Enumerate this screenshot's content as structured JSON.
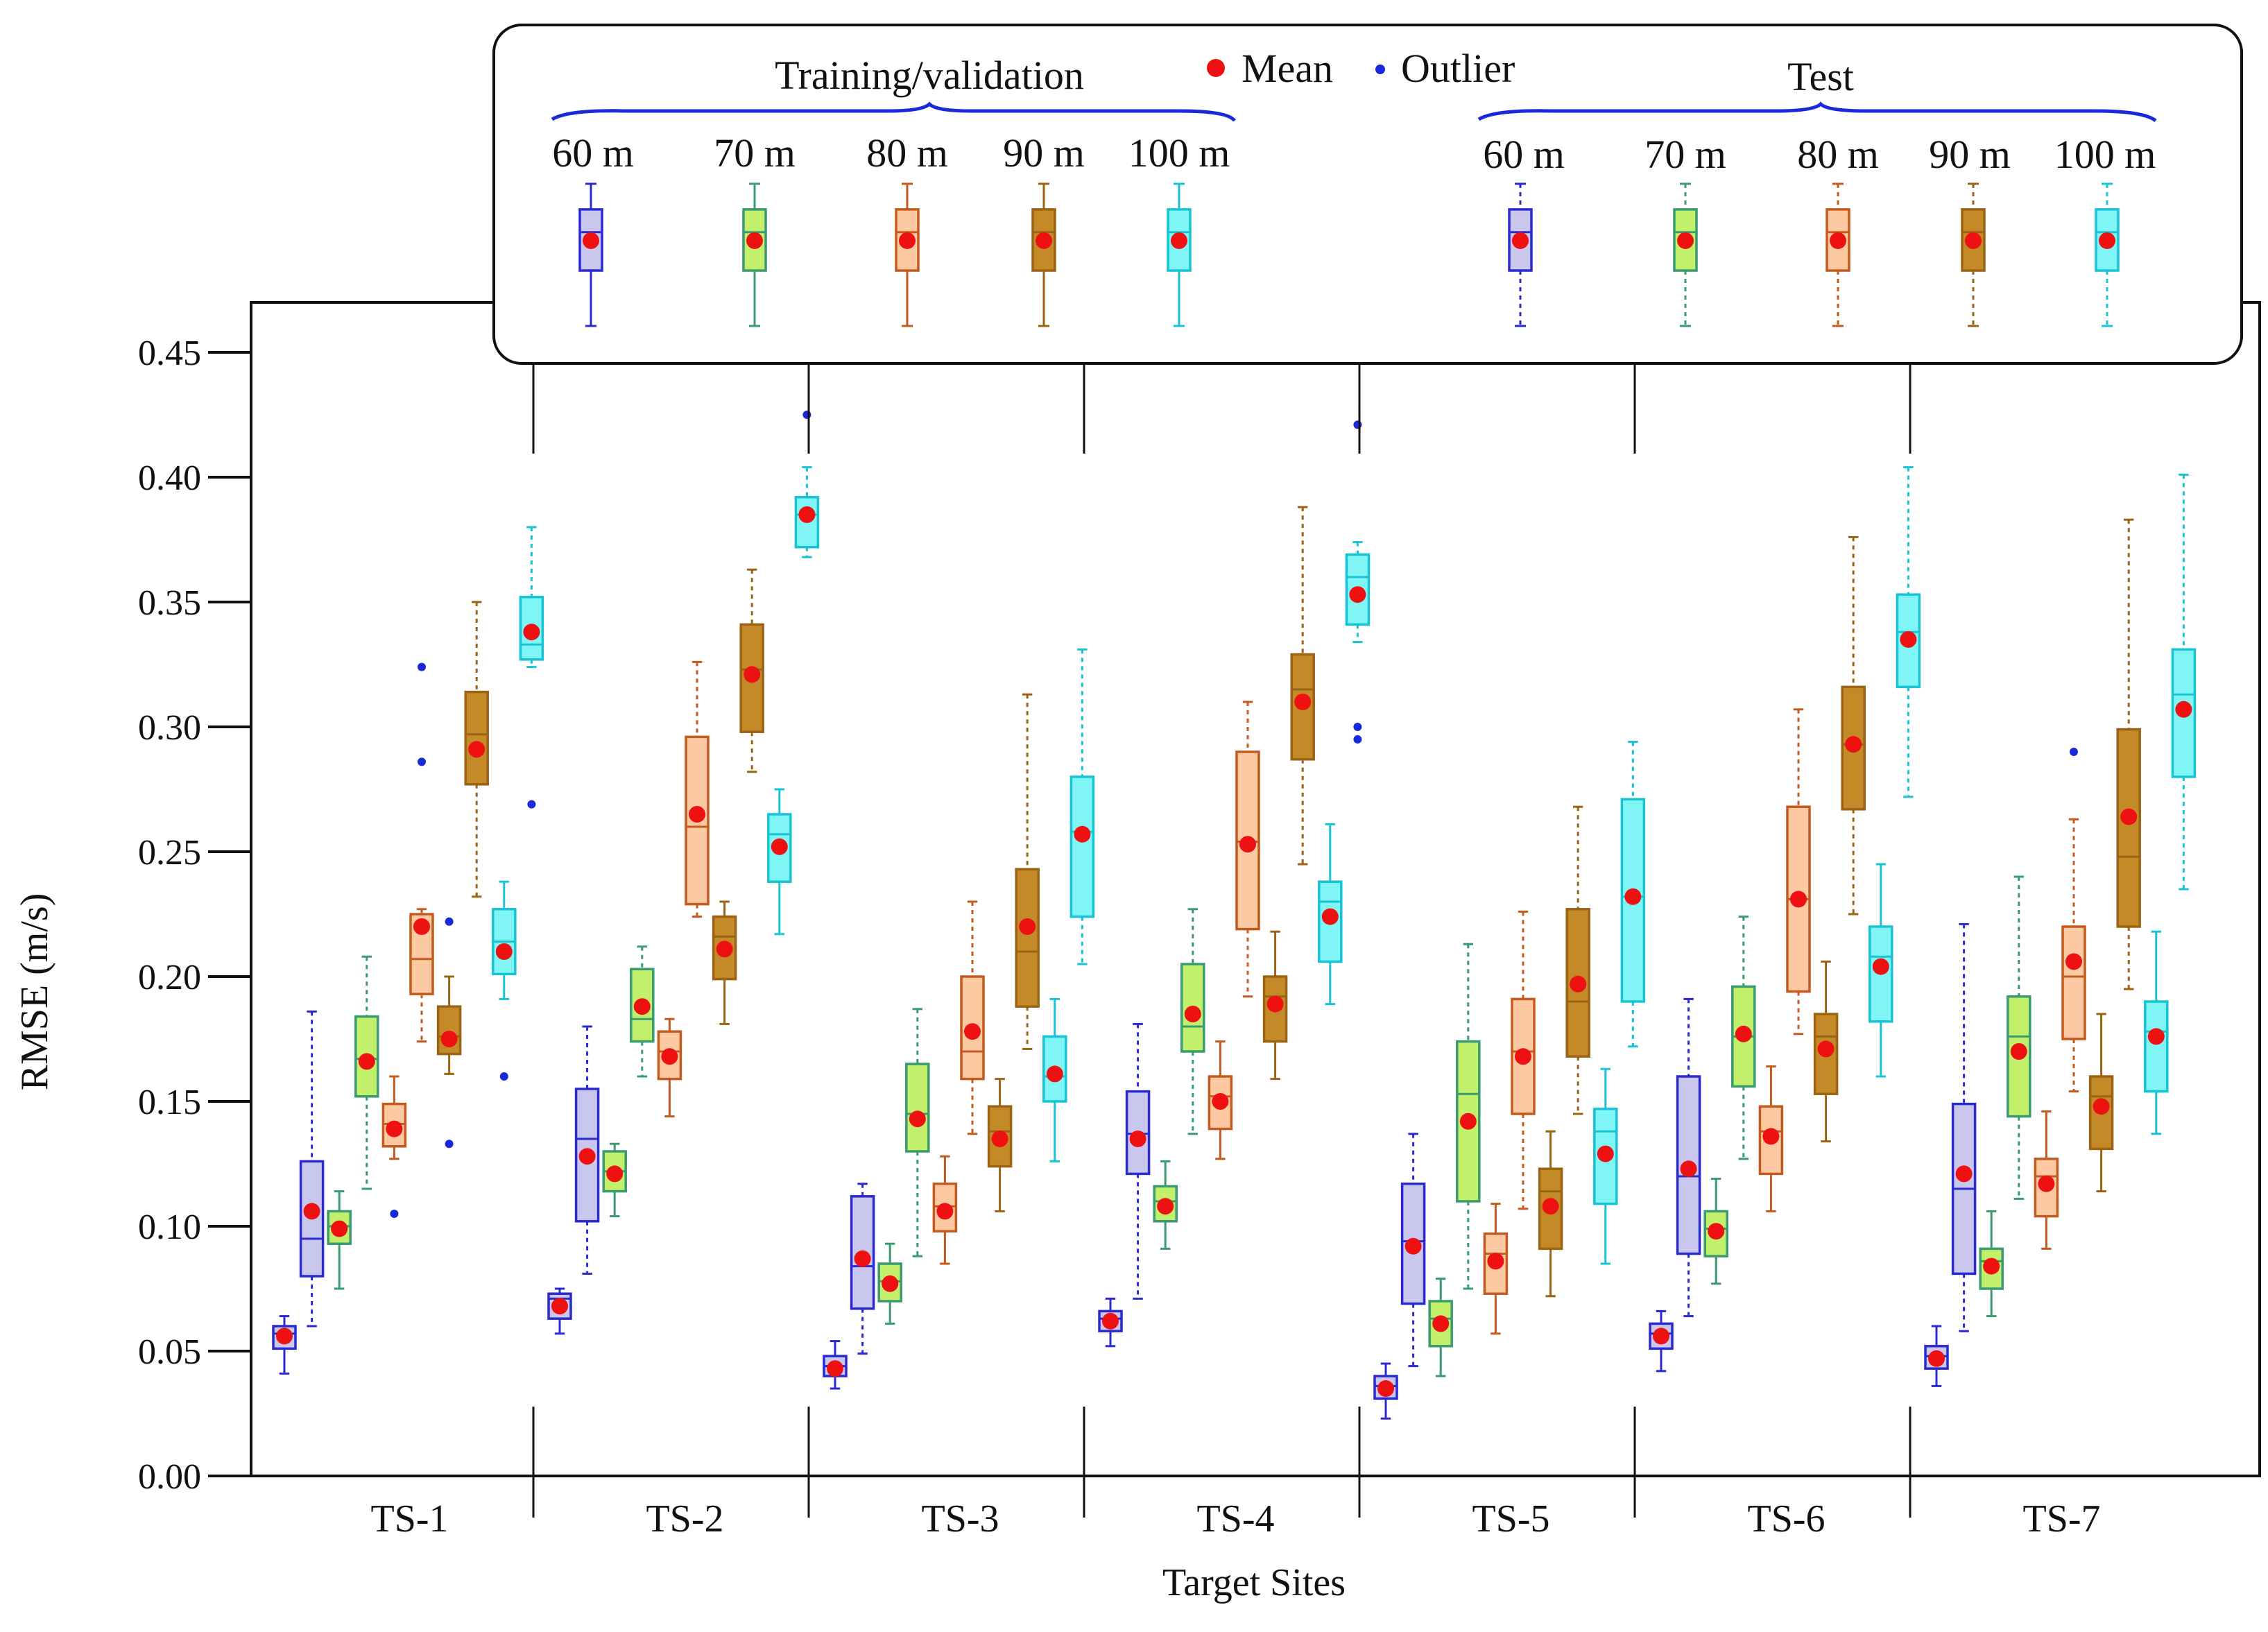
{
  "chart_data": {
    "type": "boxplot",
    "title": "",
    "xlabel": "Target Sites",
    "ylabel": "RMSE (m/s)",
    "ylim": [
      0,
      0.47
    ],
    "yticks": [
      0.0,
      0.05,
      0.1,
      0.15,
      0.2,
      0.25,
      0.3,
      0.35,
      0.4,
      0.45
    ],
    "ytick_labels": [
      "0.00",
      "0.05",
      "0.10",
      "0.15",
      "0.20",
      "0.25",
      "0.30",
      "0.35",
      "0.40",
      "0.45"
    ],
    "categories": [
      "TS-1",
      "TS-2",
      "TS-3",
      "TS-4",
      "TS-5",
      "TS-6",
      "TS-7"
    ],
    "legend": {
      "training_label": "Training/validation",
      "test_label": "Test",
      "mean_label": "Mean",
      "outlier_label": "Outlier",
      "heights": [
        "60 m",
        "70 m",
        "80 m",
        "90 m",
        "100 m"
      ]
    },
    "colors": {
      "60 m": {
        "fill": "#c9c7ee",
        "edge": "#2a2ad0"
      },
      "70 m": {
        "fill": "#c2f06a",
        "edge": "#3a9a70"
      },
      "80 m": {
        "fill": "#fcc9a2",
        "edge": "#c55a1e"
      },
      "90 m": {
        "fill": "#c48a28",
        "edge": "#9a6414"
      },
      "100 m": {
        "fill": "#80f5f5",
        "edge": "#18c4d4"
      },
      "mean": "#ee1111",
      "outlier": "#1a2ad8"
    },
    "series": [
      {
        "site": "TS-1",
        "height": "60 m",
        "set": "Training/validation",
        "whislo": 0.041,
        "q1": 0.051,
        "med": 0.057,
        "q3": 0.06,
        "whishi": 0.064,
        "mean": 0.056,
        "outliers": []
      },
      {
        "site": "TS-1",
        "height": "60 m",
        "set": "Test",
        "whislo": 0.06,
        "q1": 0.08,
        "med": 0.095,
        "q3": 0.126,
        "whishi": 0.186,
        "mean": 0.106,
        "outliers": []
      },
      {
        "site": "TS-1",
        "height": "70 m",
        "set": "Training/validation",
        "whislo": 0.075,
        "q1": 0.093,
        "med": 0.1,
        "q3": 0.106,
        "whishi": 0.114,
        "mean": 0.099,
        "outliers": []
      },
      {
        "site": "TS-1",
        "height": "70 m",
        "set": "Test",
        "whislo": 0.115,
        "q1": 0.152,
        "med": 0.167,
        "q3": 0.184,
        "whishi": 0.208,
        "mean": 0.166,
        "outliers": []
      },
      {
        "site": "TS-1",
        "height": "80 m",
        "set": "Training/validation",
        "whislo": 0.127,
        "q1": 0.132,
        "med": 0.141,
        "q3": 0.149,
        "whishi": 0.16,
        "mean": 0.139,
        "outliers": [
          0.105
        ]
      },
      {
        "site": "TS-1",
        "height": "80 m",
        "set": "Test",
        "whislo": 0.174,
        "q1": 0.193,
        "med": 0.207,
        "q3": 0.225,
        "whishi": 0.227,
        "mean": 0.22,
        "outliers": [
          0.286,
          0.324
        ]
      },
      {
        "site": "TS-1",
        "height": "90 m",
        "set": "Training/validation",
        "whislo": 0.161,
        "q1": 0.169,
        "med": 0.176,
        "q3": 0.188,
        "whishi": 0.2,
        "mean": 0.175,
        "outliers": [
          0.133,
          0.222
        ]
      },
      {
        "site": "TS-1",
        "height": "90 m",
        "set": "Test",
        "whislo": 0.232,
        "q1": 0.277,
        "med": 0.297,
        "q3": 0.314,
        "whishi": 0.35,
        "mean": 0.291,
        "outliers": []
      },
      {
        "site": "TS-1",
        "height": "100 m",
        "set": "Training/validation",
        "whislo": 0.191,
        "q1": 0.201,
        "med": 0.214,
        "q3": 0.227,
        "whishi": 0.238,
        "mean": 0.21,
        "outliers": [
          0.16
        ]
      },
      {
        "site": "TS-1",
        "height": "100 m",
        "set": "Test",
        "whislo": 0.324,
        "q1": 0.327,
        "med": 0.333,
        "q3": 0.352,
        "whishi": 0.38,
        "mean": 0.338,
        "outliers": [
          0.269
        ]
      },
      {
        "site": "TS-2",
        "height": "60 m",
        "set": "Training/validation",
        "whislo": 0.057,
        "q1": 0.063,
        "med": 0.071,
        "q3": 0.073,
        "whishi": 0.075,
        "mean": 0.068,
        "outliers": []
      },
      {
        "site": "TS-2",
        "height": "60 m",
        "set": "Test",
        "whislo": 0.081,
        "q1": 0.102,
        "med": 0.135,
        "q3": 0.155,
        "whishi": 0.18,
        "mean": 0.128,
        "outliers": []
      },
      {
        "site": "TS-2",
        "height": "70 m",
        "set": "Training/validation",
        "whislo": 0.104,
        "q1": 0.114,
        "med": 0.122,
        "q3": 0.13,
        "whishi": 0.133,
        "mean": 0.121,
        "outliers": []
      },
      {
        "site": "TS-2",
        "height": "70 m",
        "set": "Test",
        "whislo": 0.16,
        "q1": 0.174,
        "med": 0.183,
        "q3": 0.203,
        "whishi": 0.212,
        "mean": 0.188,
        "outliers": []
      },
      {
        "site": "TS-2",
        "height": "80 m",
        "set": "Training/validation",
        "whislo": 0.144,
        "q1": 0.159,
        "med": 0.17,
        "q3": 0.178,
        "whishi": 0.183,
        "mean": 0.168,
        "outliers": []
      },
      {
        "site": "TS-2",
        "height": "80 m",
        "set": "Test",
        "whislo": 0.224,
        "q1": 0.229,
        "med": 0.26,
        "q3": 0.296,
        "whishi": 0.326,
        "mean": 0.265,
        "outliers": []
      },
      {
        "site": "TS-2",
        "height": "90 m",
        "set": "Training/validation",
        "whislo": 0.181,
        "q1": 0.199,
        "med": 0.216,
        "q3": 0.224,
        "whishi": 0.23,
        "mean": 0.211,
        "outliers": []
      },
      {
        "site": "TS-2",
        "height": "90 m",
        "set": "Test",
        "whislo": 0.282,
        "q1": 0.298,
        "med": 0.323,
        "q3": 0.341,
        "whishi": 0.363,
        "mean": 0.321,
        "outliers": []
      },
      {
        "site": "TS-2",
        "height": "100 m",
        "set": "Training/validation",
        "whislo": 0.217,
        "q1": 0.238,
        "med": 0.257,
        "q3": 0.265,
        "whishi": 0.275,
        "mean": 0.252,
        "outliers": []
      },
      {
        "site": "TS-2",
        "height": "100 m",
        "set": "Test",
        "whislo": 0.368,
        "q1": 0.372,
        "med": 0.385,
        "q3": 0.392,
        "whishi": 0.404,
        "mean": 0.385,
        "outliers": [
          0.425
        ]
      },
      {
        "site": "TS-3",
        "height": "60 m",
        "set": "Training/validation",
        "whislo": 0.035,
        "q1": 0.04,
        "med": 0.044,
        "q3": 0.048,
        "whishi": 0.054,
        "mean": 0.043,
        "outliers": []
      },
      {
        "site": "TS-3",
        "height": "60 m",
        "set": "Test",
        "whislo": 0.049,
        "q1": 0.067,
        "med": 0.084,
        "q3": 0.112,
        "whishi": 0.117,
        "mean": 0.087,
        "outliers": []
      },
      {
        "site": "TS-3",
        "height": "70 m",
        "set": "Training/validation",
        "whislo": 0.061,
        "q1": 0.07,
        "med": 0.078,
        "q3": 0.085,
        "whishi": 0.093,
        "mean": 0.077,
        "outliers": []
      },
      {
        "site": "TS-3",
        "height": "70 m",
        "set": "Test",
        "whislo": 0.088,
        "q1": 0.13,
        "med": 0.145,
        "q3": 0.165,
        "whishi": 0.187,
        "mean": 0.143,
        "outliers": []
      },
      {
        "site": "TS-3",
        "height": "80 m",
        "set": "Training/validation",
        "whislo": 0.085,
        "q1": 0.098,
        "med": 0.108,
        "q3": 0.117,
        "whishi": 0.128,
        "mean": 0.106,
        "outliers": []
      },
      {
        "site": "TS-3",
        "height": "80 m",
        "set": "Test",
        "whislo": 0.137,
        "q1": 0.159,
        "med": 0.17,
        "q3": 0.2,
        "whishi": 0.23,
        "mean": 0.178,
        "outliers": []
      },
      {
        "site": "TS-3",
        "height": "90 m",
        "set": "Training/validation",
        "whislo": 0.106,
        "q1": 0.124,
        "med": 0.138,
        "q3": 0.148,
        "whishi": 0.159,
        "mean": 0.135,
        "outliers": []
      },
      {
        "site": "TS-3",
        "height": "90 m",
        "set": "Test",
        "whislo": 0.171,
        "q1": 0.188,
        "med": 0.21,
        "q3": 0.243,
        "whishi": 0.313,
        "mean": 0.22,
        "outliers": []
      },
      {
        "site": "TS-3",
        "height": "100 m",
        "set": "Training/validation",
        "whislo": 0.126,
        "q1": 0.15,
        "med": 0.16,
        "q3": 0.176,
        "whishi": 0.191,
        "mean": 0.161,
        "outliers": []
      },
      {
        "site": "TS-3",
        "height": "100 m",
        "set": "Test",
        "whislo": 0.205,
        "q1": 0.224,
        "med": 0.258,
        "q3": 0.28,
        "whishi": 0.331,
        "mean": 0.257,
        "outliers": []
      },
      {
        "site": "TS-4",
        "height": "60 m",
        "set": "Training/validation",
        "whislo": 0.052,
        "q1": 0.058,
        "med": 0.063,
        "q3": 0.066,
        "whishi": 0.071,
        "mean": 0.062,
        "outliers": []
      },
      {
        "site": "TS-4",
        "height": "60 m",
        "set": "Test",
        "whislo": 0.071,
        "q1": 0.121,
        "med": 0.137,
        "q3": 0.154,
        "whishi": 0.181,
        "mean": 0.135,
        "outliers": []
      },
      {
        "site": "TS-4",
        "height": "70 m",
        "set": "Training/validation",
        "whislo": 0.091,
        "q1": 0.102,
        "med": 0.11,
        "q3": 0.116,
        "whishi": 0.126,
        "mean": 0.108,
        "outliers": []
      },
      {
        "site": "TS-4",
        "height": "70 m",
        "set": "Test",
        "whislo": 0.137,
        "q1": 0.17,
        "med": 0.18,
        "q3": 0.205,
        "whishi": 0.227,
        "mean": 0.185,
        "outliers": []
      },
      {
        "site": "TS-4",
        "height": "80 m",
        "set": "Training/validation",
        "whislo": 0.127,
        "q1": 0.139,
        "med": 0.152,
        "q3": 0.16,
        "whishi": 0.174,
        "mean": 0.15,
        "outliers": []
      },
      {
        "site": "TS-4",
        "height": "80 m",
        "set": "Test",
        "whislo": 0.192,
        "q1": 0.219,
        "med": 0.254,
        "q3": 0.29,
        "whishi": 0.31,
        "mean": 0.253,
        "outliers": []
      },
      {
        "site": "TS-4",
        "height": "90 m",
        "set": "Training/validation",
        "whislo": 0.159,
        "q1": 0.174,
        "med": 0.192,
        "q3": 0.2,
        "whishi": 0.218,
        "mean": 0.189,
        "outliers": []
      },
      {
        "site": "TS-4",
        "height": "90 m",
        "set": "Test",
        "whislo": 0.245,
        "q1": 0.287,
        "med": 0.315,
        "q3": 0.329,
        "whishi": 0.388,
        "mean": 0.31,
        "outliers": []
      },
      {
        "site": "TS-4",
        "height": "100 m",
        "set": "Training/validation",
        "whislo": 0.189,
        "q1": 0.206,
        "med": 0.23,
        "q3": 0.238,
        "whishi": 0.261,
        "mean": 0.224,
        "outliers": []
      },
      {
        "site": "TS-4",
        "height": "100 m",
        "set": "Test",
        "whislo": 0.334,
        "q1": 0.341,
        "med": 0.36,
        "q3": 0.369,
        "whishi": 0.374,
        "mean": 0.353,
        "outliers": [
          0.295,
          0.3,
          0.421
        ]
      },
      {
        "site": "TS-5",
        "height": "60 m",
        "set": "Training/validation",
        "whislo": 0.023,
        "q1": 0.031,
        "med": 0.036,
        "q3": 0.04,
        "whishi": 0.045,
        "mean": 0.035,
        "outliers": []
      },
      {
        "site": "TS-5",
        "height": "60 m",
        "set": "Test",
        "whislo": 0.044,
        "q1": 0.069,
        "med": 0.094,
        "q3": 0.117,
        "whishi": 0.137,
        "mean": 0.092,
        "outliers": []
      },
      {
        "site": "TS-5",
        "height": "70 m",
        "set": "Training/validation",
        "whislo": 0.04,
        "q1": 0.052,
        "med": 0.063,
        "q3": 0.07,
        "whishi": 0.079,
        "mean": 0.061,
        "outliers": []
      },
      {
        "site": "TS-5",
        "height": "70 m",
        "set": "Test",
        "whislo": 0.075,
        "q1": 0.11,
        "med": 0.153,
        "q3": 0.174,
        "whishi": 0.213,
        "mean": 0.142,
        "outliers": []
      },
      {
        "site": "TS-5",
        "height": "80 m",
        "set": "Training/validation",
        "whislo": 0.057,
        "q1": 0.073,
        "med": 0.089,
        "q3": 0.097,
        "whishi": 0.109,
        "mean": 0.086,
        "outliers": []
      },
      {
        "site": "TS-5",
        "height": "80 m",
        "set": "Test",
        "whislo": 0.107,
        "q1": 0.145,
        "med": 0.17,
        "q3": 0.191,
        "whishi": 0.226,
        "mean": 0.168,
        "outliers": []
      },
      {
        "site": "TS-5",
        "height": "90 m",
        "set": "Training/validation",
        "whislo": 0.072,
        "q1": 0.091,
        "med": 0.114,
        "q3": 0.123,
        "whishi": 0.138,
        "mean": 0.108,
        "outliers": []
      },
      {
        "site": "TS-5",
        "height": "90 m",
        "set": "Test",
        "whislo": 0.145,
        "q1": 0.168,
        "med": 0.19,
        "q3": 0.227,
        "whishi": 0.268,
        "mean": 0.197,
        "outliers": []
      },
      {
        "site": "TS-5",
        "height": "100 m",
        "set": "Training/validation",
        "whislo": 0.085,
        "q1": 0.109,
        "med": 0.138,
        "q3": 0.147,
        "whishi": 0.163,
        "mean": 0.129,
        "outliers": []
      },
      {
        "site": "TS-5",
        "height": "100 m",
        "set": "Test",
        "whislo": 0.172,
        "q1": 0.19,
        "med": 0.232,
        "q3": 0.271,
        "whishi": 0.294,
        "mean": 0.232,
        "outliers": []
      },
      {
        "site": "TS-6",
        "height": "60 m",
        "set": "Training/validation",
        "whislo": 0.042,
        "q1": 0.051,
        "med": 0.057,
        "q3": 0.061,
        "whishi": 0.066,
        "mean": 0.056,
        "outliers": []
      },
      {
        "site": "TS-6",
        "height": "60 m",
        "set": "Test",
        "whislo": 0.064,
        "q1": 0.089,
        "med": 0.12,
        "q3": 0.16,
        "whishi": 0.191,
        "mean": 0.123,
        "outliers": []
      },
      {
        "site": "TS-6",
        "height": "70 m",
        "set": "Training/validation",
        "whislo": 0.077,
        "q1": 0.088,
        "med": 0.099,
        "q3": 0.106,
        "whishi": 0.119,
        "mean": 0.098,
        "outliers": []
      },
      {
        "site": "TS-6",
        "height": "70 m",
        "set": "Test",
        "whislo": 0.127,
        "q1": 0.156,
        "med": 0.176,
        "q3": 0.196,
        "whishi": 0.224,
        "mean": 0.177,
        "outliers": []
      },
      {
        "site": "TS-6",
        "height": "80 m",
        "set": "Training/validation",
        "whislo": 0.106,
        "q1": 0.121,
        "med": 0.138,
        "q3": 0.148,
        "whishi": 0.164,
        "mean": 0.136,
        "outliers": []
      },
      {
        "site": "TS-6",
        "height": "80 m",
        "set": "Test",
        "whislo": 0.177,
        "q1": 0.194,
        "med": 0.231,
        "q3": 0.268,
        "whishi": 0.307,
        "mean": 0.231,
        "outliers": []
      },
      {
        "site": "TS-6",
        "height": "90 m",
        "set": "Training/validation",
        "whislo": 0.134,
        "q1": 0.153,
        "med": 0.176,
        "q3": 0.185,
        "whishi": 0.206,
        "mean": 0.171,
        "outliers": []
      },
      {
        "site": "TS-6",
        "height": "90 m",
        "set": "Test",
        "whislo": 0.225,
        "q1": 0.267,
        "med": 0.293,
        "q3": 0.316,
        "whishi": 0.376,
        "mean": 0.293,
        "outliers": []
      },
      {
        "site": "TS-6",
        "height": "100 m",
        "set": "Training/validation",
        "whislo": 0.16,
        "q1": 0.182,
        "med": 0.208,
        "q3": 0.22,
        "whishi": 0.245,
        "mean": 0.204,
        "outliers": []
      },
      {
        "site": "TS-6",
        "height": "100 m",
        "set": "Test",
        "whislo": 0.272,
        "q1": 0.316,
        "med": 0.338,
        "q3": 0.353,
        "whishi": 0.404,
        "mean": 0.335,
        "outliers": []
      },
      {
        "site": "TS-7",
        "height": "60 m",
        "set": "Training/validation",
        "whislo": 0.036,
        "q1": 0.043,
        "med": 0.048,
        "q3": 0.052,
        "whishi": 0.06,
        "mean": 0.047,
        "outliers": []
      },
      {
        "site": "TS-7",
        "height": "60 m",
        "set": "Test",
        "whislo": 0.058,
        "q1": 0.081,
        "med": 0.115,
        "q3": 0.149,
        "whishi": 0.221,
        "mean": 0.121,
        "outliers": []
      },
      {
        "site": "TS-7",
        "height": "70 m",
        "set": "Training/validation",
        "whislo": 0.064,
        "q1": 0.075,
        "med": 0.086,
        "q3": 0.091,
        "whishi": 0.106,
        "mean": 0.084,
        "outliers": []
      },
      {
        "site": "TS-7",
        "height": "70 m",
        "set": "Test",
        "whislo": 0.111,
        "q1": 0.144,
        "med": 0.176,
        "q3": 0.192,
        "whishi": 0.24,
        "mean": 0.17,
        "outliers": []
      },
      {
        "site": "TS-7",
        "height": "80 m",
        "set": "Training/validation",
        "whislo": 0.091,
        "q1": 0.104,
        "med": 0.12,
        "q3": 0.127,
        "whishi": 0.146,
        "mean": 0.117,
        "outliers": []
      },
      {
        "site": "TS-7",
        "height": "80 m",
        "set": "Test",
        "whislo": 0.154,
        "q1": 0.175,
        "med": 0.2,
        "q3": 0.22,
        "whishi": 0.263,
        "mean": 0.206,
        "outliers": [
          0.29
        ]
      },
      {
        "site": "TS-7",
        "height": "90 m",
        "set": "Training/validation",
        "whislo": 0.114,
        "q1": 0.131,
        "med": 0.152,
        "q3": 0.16,
        "whishi": 0.185,
        "mean": 0.148,
        "outliers": []
      },
      {
        "site": "TS-7",
        "height": "90 m",
        "set": "Test",
        "whislo": 0.195,
        "q1": 0.22,
        "med": 0.248,
        "q3": 0.299,
        "whishi": 0.383,
        "mean": 0.264,
        "outliers": []
      },
      {
        "site": "TS-7",
        "height": "100 m",
        "set": "Training/validation",
        "whislo": 0.137,
        "q1": 0.154,
        "med": 0.178,
        "q3": 0.19,
        "whishi": 0.218,
        "mean": 0.176,
        "outliers": []
      },
      {
        "site": "TS-7",
        "height": "100 m",
        "set": "Test",
        "whislo": 0.235,
        "q1": 0.28,
        "med": 0.313,
        "q3": 0.331,
        "whishi": 0.401,
        "mean": 0.307,
        "outliers": []
      }
    ]
  }
}
